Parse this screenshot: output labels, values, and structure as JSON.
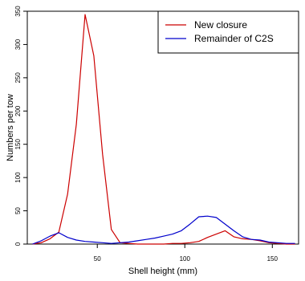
{
  "chart_data": {
    "type": "line",
    "xlabel": "Shell height (mm)",
    "ylabel": "Numbers per tow",
    "xlim": [
      10,
      165
    ],
    "ylim": [
      0,
      350
    ],
    "x_ticks": [
      50,
      100,
      150
    ],
    "y_ticks": [
      0,
      50,
      100,
      150,
      200,
      250,
      300,
      350
    ],
    "legend_position": "top-right",
    "series": [
      {
        "name": "New closure",
        "color": "#cc0000",
        "x": [
          13,
          18,
          23,
          28,
          33,
          38,
          43,
          48,
          53,
          58,
          63,
          68,
          73,
          78,
          83,
          88,
          93,
          98,
          103,
          108,
          113,
          118,
          123,
          128,
          133,
          138,
          143,
          148,
          153,
          158,
          163
        ],
        "y": [
          0,
          2,
          8,
          18,
          75,
          180,
          345,
          283,
          135,
          22,
          2,
          1,
          0,
          0,
          0,
          0,
          1,
          1,
          2,
          4,
          10,
          15,
          20,
          11,
          8,
          7,
          5,
          2,
          1,
          0,
          0
        ]
      },
      {
        "name": "Remainder of C2S",
        "color": "#0000cc",
        "x": [
          13,
          18,
          23,
          28,
          33,
          38,
          43,
          48,
          53,
          58,
          63,
          68,
          73,
          78,
          83,
          88,
          93,
          98,
          103,
          108,
          113,
          118,
          123,
          128,
          133,
          138,
          143,
          148,
          153,
          158,
          163
        ],
        "y": [
          0,
          5,
          12,
          17,
          10,
          6,
          4,
          3,
          2,
          1,
          2,
          3,
          5,
          7,
          9,
          12,
          15,
          20,
          30,
          41,
          42,
          40,
          30,
          20,
          11,
          7,
          6,
          3,
          2,
          1,
          1
        ]
      }
    ]
  }
}
